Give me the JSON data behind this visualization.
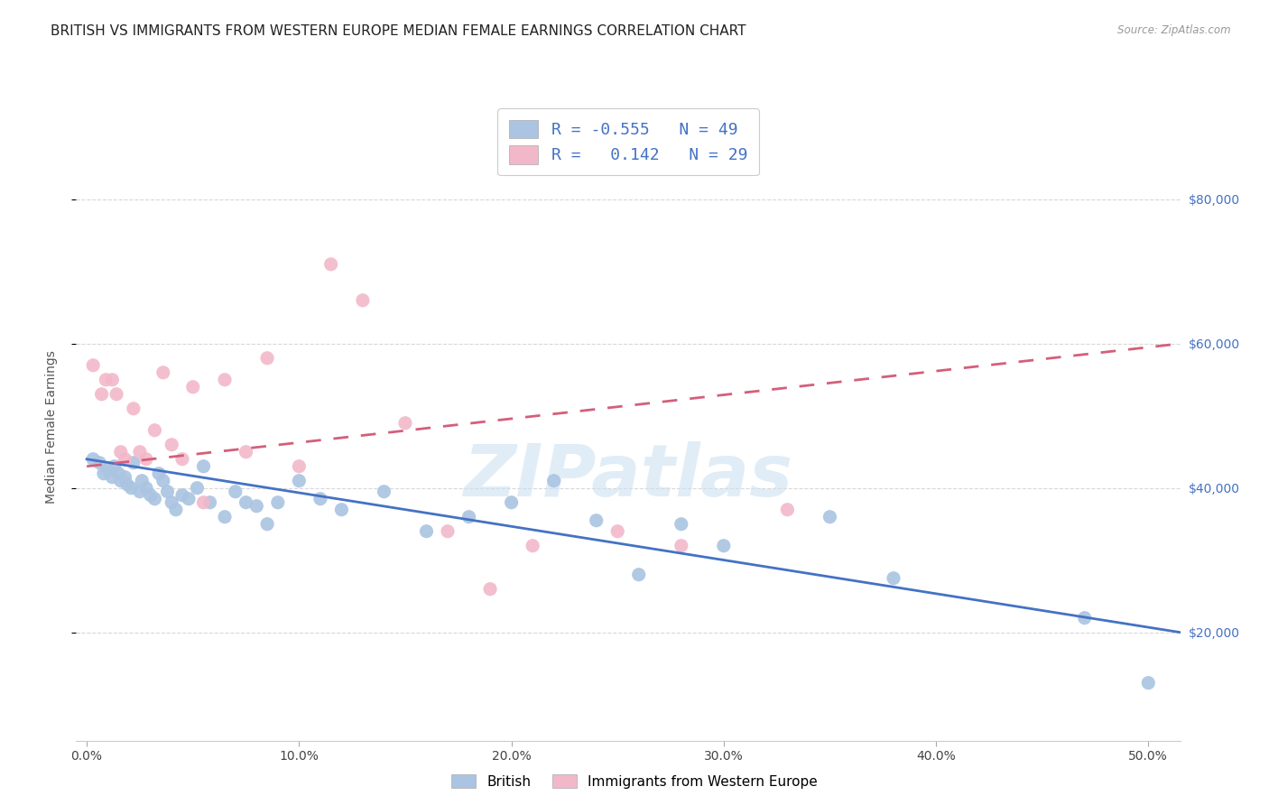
{
  "title": "BRITISH VS IMMIGRANTS FROM WESTERN EUROPE MEDIAN FEMALE EARNINGS CORRELATION CHART",
  "source": "Source: ZipAtlas.com",
  "ylabel": "Median Female Earnings",
  "xlabel_ticks": [
    "0.0%",
    "10.0%",
    "20.0%",
    "30.0%",
    "40.0%",
    "50.0%"
  ],
  "xlabel_vals": [
    0.0,
    0.1,
    0.2,
    0.3,
    0.4,
    0.5
  ],
  "ytick_labels": [
    "$20,000",
    "$40,000",
    "$60,000",
    "$80,000"
  ],
  "ytick_vals": [
    20000,
    40000,
    60000,
    80000
  ],
  "xlim": [
    -0.005,
    0.515
  ],
  "ylim": [
    5000,
    92000
  ],
  "watermark": "ZIPatlas",
  "legend_british_R": "-0.555",
  "legend_british_N": "49",
  "legend_immig_R": "0.142",
  "legend_immig_N": "29",
  "british_color": "#aac4e2",
  "immig_color": "#f2b8ca",
  "british_line_color": "#4472c4",
  "immig_line_color": "#d45f7a",
  "british_x": [
    0.003,
    0.006,
    0.008,
    0.01,
    0.012,
    0.013,
    0.015,
    0.016,
    0.018,
    0.019,
    0.021,
    0.022,
    0.025,
    0.026,
    0.028,
    0.03,
    0.032,
    0.034,
    0.036,
    0.038,
    0.04,
    0.042,
    0.045,
    0.048,
    0.052,
    0.055,
    0.058,
    0.065,
    0.07,
    0.075,
    0.08,
    0.085,
    0.09,
    0.1,
    0.11,
    0.12,
    0.14,
    0.16,
    0.18,
    0.2,
    0.22,
    0.24,
    0.26,
    0.28,
    0.3,
    0.35,
    0.38,
    0.47,
    0.5
  ],
  "british_y": [
    44000,
    43500,
    42000,
    42500,
    41500,
    43000,
    42000,
    41000,
    41500,
    40500,
    40000,
    43500,
    39500,
    41000,
    40000,
    39000,
    38500,
    42000,
    41000,
    39500,
    38000,
    37000,
    39000,
    38500,
    40000,
    43000,
    38000,
    36000,
    39500,
    38000,
    37500,
    35000,
    38000,
    41000,
    38500,
    37000,
    39500,
    34000,
    36000,
    38000,
    41000,
    35500,
    28000,
    35000,
    32000,
    36000,
    27500,
    22000,
    13000
  ],
  "immig_x": [
    0.003,
    0.007,
    0.009,
    0.012,
    0.014,
    0.016,
    0.018,
    0.022,
    0.025,
    0.028,
    0.032,
    0.036,
    0.04,
    0.045,
    0.05,
    0.055,
    0.065,
    0.075,
    0.085,
    0.1,
    0.115,
    0.13,
    0.15,
    0.17,
    0.19,
    0.21,
    0.25,
    0.28,
    0.33
  ],
  "immig_y": [
    57000,
    53000,
    55000,
    55000,
    53000,
    45000,
    44000,
    51000,
    45000,
    44000,
    48000,
    56000,
    46000,
    44000,
    54000,
    38000,
    55000,
    45000,
    58000,
    43000,
    71000,
    66000,
    49000,
    34000,
    26000,
    32000,
    34000,
    32000,
    37000
  ],
  "grid_color": "#d8d8d8",
  "bg_color": "#ffffff",
  "right_label_color": "#4472c4",
  "title_fontsize": 11,
  "axis_label_fontsize": 10,
  "tick_fontsize": 10,
  "scatter_size": 120,
  "british_line_start_x": 0.0,
  "british_line_end_x": 0.515,
  "immig_line_start_x": 0.0,
  "immig_line_end_x": 0.515
}
